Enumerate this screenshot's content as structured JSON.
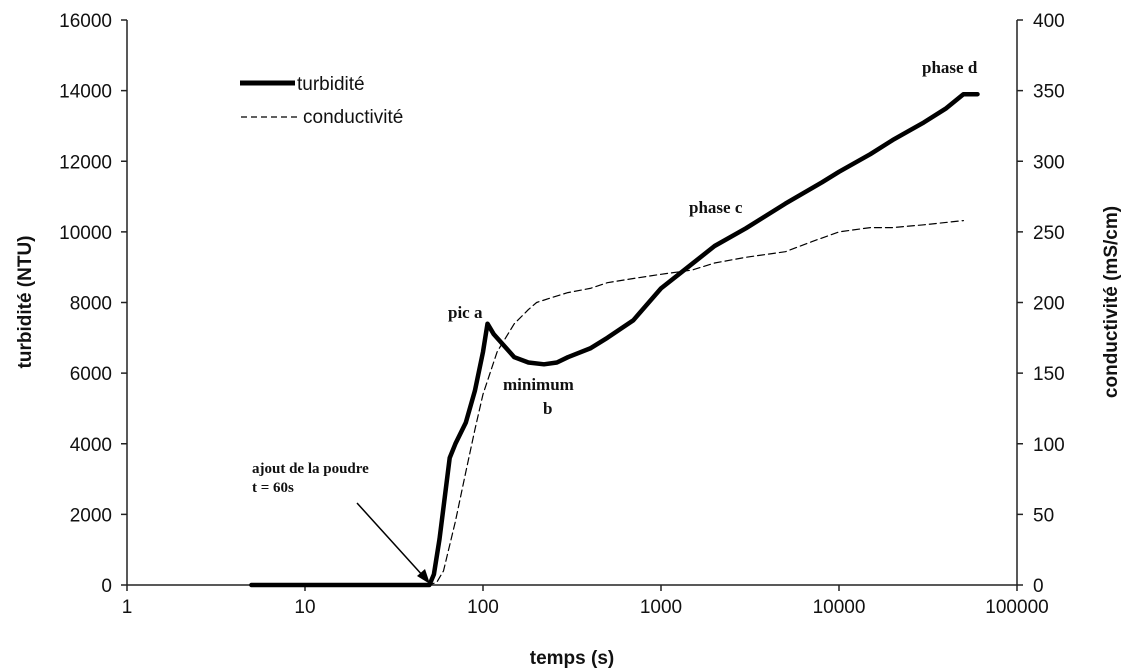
{
  "chart_data": {
    "type": "line",
    "xlabel": "temps (s)",
    "ylabel_left": "turbidité (NTU)",
    "ylabel_right": "conductivité (mS/cm)",
    "x_scale": "log",
    "xlim": [
      1,
      100000
    ],
    "ylim_left": [
      0,
      16000
    ],
    "ylim_right": [
      0,
      400
    ],
    "x_ticks": [
      "1",
      "10",
      "100",
      "1000",
      "10000",
      "100000"
    ],
    "y_left_ticks": [
      "0",
      "2000",
      "4000",
      "6000",
      "8000",
      "10000",
      "12000",
      "14000",
      "16000"
    ],
    "y_right_ticks": [
      "0",
      "50",
      "100",
      "150",
      "200",
      "250",
      "300",
      "350",
      "400"
    ],
    "legend": {
      "position": "top-left",
      "turbidite_label": "turbidité",
      "conductivite_label": "conductivité"
    },
    "series": [
      {
        "name": "turbidité",
        "axis": "left",
        "style": "solid-thick",
        "color": "#000000",
        "x": [
          5,
          10,
          20,
          40,
          50,
          53,
          57,
          60,
          65,
          70,
          80,
          90,
          100,
          106,
          115,
          130,
          150,
          180,
          220,
          260,
          300,
          400,
          500,
          700,
          1000,
          1500,
          2000,
          3000,
          5000,
          8000,
          10000,
          15000,
          20000,
          30000,
          40000,
          50000,
          60000
        ],
        "values": [
          0,
          0,
          0,
          0,
          0,
          300,
          1300,
          2200,
          3600,
          4000,
          4600,
          5500,
          6600,
          7400,
          7100,
          6800,
          6450,
          6300,
          6250,
          6300,
          6450,
          6700,
          7000,
          7500,
          8400,
          9100,
          9600,
          10100,
          10800,
          11400,
          11700,
          12200,
          12600,
          13100,
          13500,
          13900,
          13900
        ]
      },
      {
        "name": "conductivité",
        "axis": "right",
        "style": "dashed-thin",
        "color": "#000000",
        "x": [
          5,
          10,
          20,
          40,
          50,
          55,
          60,
          70,
          80,
          90,
          100,
          120,
          150,
          180,
          200,
          250,
          300,
          400,
          500,
          700,
          1000,
          1500,
          2000,
          3000,
          5000,
          7000,
          10000,
          15000,
          20000,
          30000,
          50000
        ],
        "values": [
          0,
          0,
          0,
          0,
          0,
          2,
          10,
          45,
          80,
          110,
          135,
          165,
          185,
          195,
          200,
          204,
          207,
          210,
          214,
          217,
          220,
          223,
          228,
          232,
          236,
          243,
          250,
          253,
          253,
          255,
          258
        ]
      }
    ],
    "annotations": {
      "ajout_line1": "ajout de la poudre",
      "ajout_line2": "t = 60s",
      "pic": "pic a",
      "minimum_line1": "minimum",
      "minimum_line2": "b",
      "phase_c": "phase c",
      "phase_d": "phase d"
    },
    "grid": false
  }
}
